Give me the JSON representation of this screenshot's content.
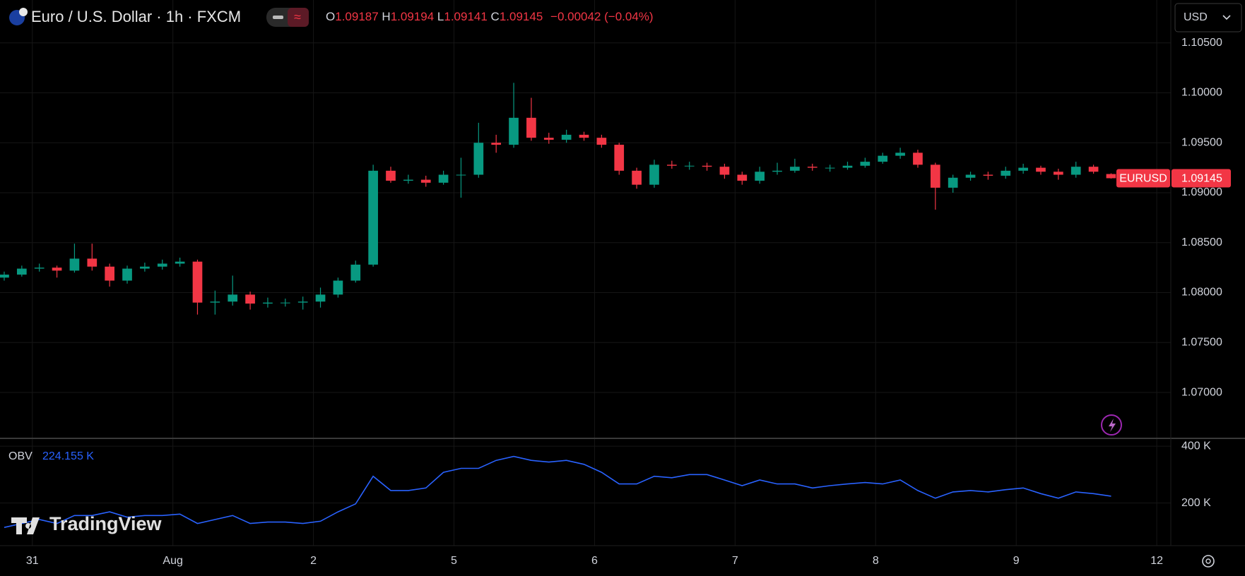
{
  "chart_data": {
    "type": "candlestick",
    "title": "Euro / U.S. Dollar · 1h · FXCM",
    "symbol": "EURUSD",
    "currency": "USD",
    "brand": "TradingView",
    "ohlc_legend": [
      {
        "label": "O",
        "value": 1.09187
      },
      {
        "label": "H",
        "value": 1.09194
      },
      {
        "label": "L",
        "value": 1.09141
      },
      {
        "label": "C",
        "value": 1.09145
      }
    ],
    "change_label": "−0.00042 (−0.04%)",
    "last_price": 1.09145,
    "up_color": "#089981",
    "down_color": "#f23645",
    "grid": true,
    "x": [
      -0.2,
      -0.075,
      0.05,
      0.175,
      0.3,
      0.425,
      0.55,
      0.675,
      0.8,
      0.925,
      1.05,
      1.175,
      1.3,
      1.425,
      1.55,
      1.675,
      1.8,
      1.925,
      2.05,
      2.175,
      2.3,
      2.425,
      2.55,
      2.675,
      2.8,
      2.925,
      3.05,
      3.175,
      3.3,
      3.425,
      3.55,
      3.675,
      3.8,
      3.925,
      4.05,
      4.175,
      4.3,
      4.425,
      4.55,
      4.675,
      4.8,
      4.925,
      5.05,
      5.175,
      5.3,
      5.425,
      5.55,
      5.675,
      5.8,
      5.925,
      6.05,
      6.175,
      6.3,
      6.425,
      6.55,
      6.675,
      6.8,
      6.925,
      7.05,
      7.175,
      7.3,
      7.425,
      7.55,
      7.675
    ],
    "open": [
      1.0815,
      1.0818,
      1.0824,
      1.0825,
      1.0822,
      1.0834,
      1.0826,
      1.0812,
      1.0824,
      1.0826,
      1.0829,
      1.0831,
      1.079,
      1.0791,
      1.0798,
      1.0789,
      1.079,
      1.079,
      1.0791,
      1.0798,
      1.0812,
      1.0828,
      1.0922,
      1.0912,
      1.0913,
      1.091,
      1.0918,
      1.0918,
      1.095,
      1.0948,
      1.0975,
      1.0955,
      1.0953,
      1.0958,
      1.0955,
      1.0948,
      1.0922,
      1.0908,
      1.0928,
      1.0927,
      1.0927,
      1.0926,
      1.0918,
      1.0912,
      1.0921,
      1.0922,
      1.0926,
      1.0925,
      1.0925,
      1.0927,
      1.0931,
      1.0937,
      1.094,
      1.0928,
      1.0905,
      1.0915,
      1.0918,
      1.0917,
      1.0922,
      1.0925,
      1.0921,
      1.0918,
      1.0926,
      1.09187
    ],
    "high": [
      1.0821,
      1.0827,
      1.0829,
      1.0827,
      1.0849,
      1.0849,
      1.0829,
      1.0827,
      1.083,
      1.0833,
      1.0835,
      1.0833,
      1.0802,
      1.0817,
      1.0801,
      1.0795,
      1.0794,
      1.0796,
      1.0805,
      1.0815,
      1.0832,
      1.0928,
      1.0926,
      1.0918,
      1.0917,
      1.0922,
      1.0935,
      1.097,
      1.0958,
      1.101,
      1.0995,
      1.096,
      1.0963,
      1.0961,
      1.0958,
      1.095,
      1.0925,
      1.0933,
      1.0932,
      1.0931,
      1.093,
      1.0929,
      1.0921,
      1.0926,
      1.093,
      1.0934,
      1.0929,
      1.0928,
      1.0931,
      1.0935,
      1.094,
      1.0945,
      1.0943,
      1.093,
      1.0918,
      1.0921,
      1.0921,
      1.0926,
      1.0929,
      1.0927,
      1.0924,
      1.0931,
      1.0928,
      1.09194
    ],
    "low": [
      1.0812,
      1.0816,
      1.0821,
      1.0815,
      1.082,
      1.0822,
      1.0806,
      1.0809,
      1.0821,
      1.0823,
      1.0826,
      1.0778,
      1.0778,
      1.0787,
      1.0783,
      1.0785,
      1.0786,
      1.0783,
      1.0785,
      1.0795,
      1.081,
      1.0826,
      1.091,
      1.0909,
      1.0906,
      1.0908,
      1.0895,
      1.0915,
      1.094,
      1.0945,
      1.0952,
      1.0949,
      1.095,
      1.0952,
      1.0945,
      1.0918,
      1.0904,
      1.0905,
      1.0924,
      1.0923,
      1.0922,
      1.0914,
      1.0908,
      1.0909,
      1.0918,
      1.092,
      1.0922,
      1.0921,
      1.0923,
      1.0925,
      1.0929,
      1.0934,
      1.0925,
      1.0883,
      1.09,
      1.0912,
      1.0913,
      1.0914,
      1.0919,
      1.0918,
      1.0913,
      1.0915,
      1.0919,
      1.09141
    ],
    "close": [
      1.0818,
      1.0824,
      1.0825,
      1.0822,
      1.0834,
      1.0826,
      1.0812,
      1.0824,
      1.0826,
      1.0829,
      1.0831,
      1.079,
      1.0791,
      1.0798,
      1.0789,
      1.079,
      1.079,
      1.0791,
      1.0798,
      1.0812,
      1.0828,
      1.0922,
      1.0912,
      1.0913,
      1.091,
      1.0918,
      1.0918,
      1.095,
      1.0948,
      1.0975,
      1.0955,
      1.0953,
      1.0958,
      1.0955,
      1.0948,
      1.0922,
      1.0908,
      1.0928,
      1.0927,
      1.0927,
      1.0926,
      1.0918,
      1.0912,
      1.0921,
      1.0922,
      1.0926,
      1.0925,
      1.0925,
      1.0927,
      1.0931,
      1.0937,
      1.094,
      1.0928,
      1.0905,
      1.0915,
      1.0918,
      1.0917,
      1.0922,
      1.0925,
      1.0921,
      1.0918,
      1.0926,
      1.0921,
      1.09145
    ],
    "xlim": [
      -0.23,
      8.1
    ],
    "xticks": [
      {
        "value": 0,
        "label": "31"
      },
      {
        "value": 1,
        "label": "Aug"
      },
      {
        "value": 2,
        "label": "2"
      },
      {
        "value": 3,
        "label": "5"
      },
      {
        "value": 4,
        "label": "6"
      },
      {
        "value": 5,
        "label": "7"
      },
      {
        "value": 6,
        "label": "8"
      },
      {
        "value": 7,
        "label": "9"
      },
      {
        "value": 8,
        "label": "12"
      }
    ],
    "ylim": [
      1.06548,
      1.10929
    ],
    "yticks": [
      {
        "value": 1.07,
        "label": "1.07000"
      },
      {
        "value": 1.075,
        "label": "1.07500"
      },
      {
        "value": 1.08,
        "label": "1.08000"
      },
      {
        "value": 1.085,
        "label": "1.08500"
      },
      {
        "value": 1.09,
        "label": "1.09000"
      },
      {
        "value": 1.095,
        "label": "1.09500"
      },
      {
        "value": 1.1,
        "label": "1.10000"
      },
      {
        "value": 1.105,
        "label": "1.10500"
      }
    ],
    "obv": {
      "name": "OBV",
      "color": "#2962ff",
      "last_value": {
        "value": 224.155,
        "label": "224.155 K"
      },
      "values": [
        114,
        128,
        142,
        128,
        156,
        156,
        169,
        150,
        156,
        156,
        161,
        128,
        142,
        156,
        128,
        133,
        133,
        128,
        136,
        169,
        197,
        294,
        244,
        244,
        253,
        308,
        322,
        322,
        350,
        364,
        350,
        344,
        350,
        336,
        308,
        267,
        267,
        294,
        289,
        300,
        300,
        281,
        261,
        281,
        267,
        267,
        253,
        261,
        267,
        272,
        267,
        281,
        244,
        217,
        239,
        244,
        239,
        247,
        253,
        233,
        217,
        239,
        233,
        224.155
      ],
      "ylim": [
        50,
        425
      ],
      "yticks": [
        {
          "value": 200,
          "label": "200 K"
        },
        {
          "value": 400,
          "label": "400 K"
        }
      ]
    }
  }
}
